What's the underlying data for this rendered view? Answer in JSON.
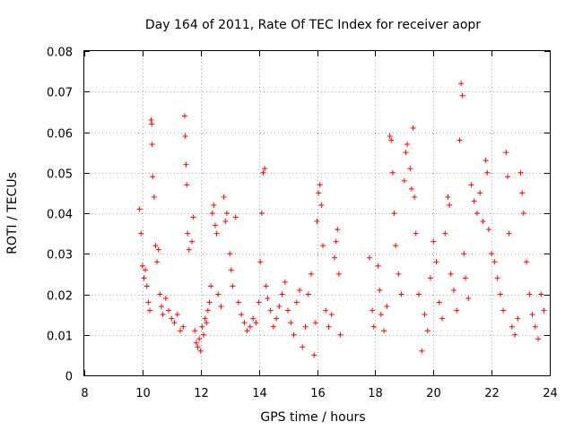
{
  "chart_data": {
    "type": "scatter",
    "title": "Day 164 of 2011, Rate Of TEC Index for receiver aopr",
    "xlabel": "GPS time / hours",
    "ylabel": "ROTI / TECUs",
    "xlim": [
      8,
      24
    ],
    "ylim": [
      0,
      0.08
    ],
    "xticks": [
      8,
      10,
      12,
      14,
      16,
      18,
      20,
      22,
      24
    ],
    "xtick_labels": [
      "8",
      "10",
      "12",
      "14",
      "16",
      "18",
      "20",
      "22",
      "24"
    ],
    "yticks": [
      0,
      0.01,
      0.02,
      0.03,
      0.04,
      0.05,
      0.06,
      0.07,
      0.08
    ],
    "ytick_labels": [
      "0",
      "0.01",
      "0.02",
      "0.03",
      "0.04",
      "0.05",
      "0.06",
      "0.07",
      "0.08"
    ],
    "grid": true,
    "marker": "+",
    "color": "#ff0000",
    "series": [
      {
        "name": "ROTI",
        "points": [
          [
            9.9,
            0.041
          ],
          [
            9.95,
            0.035
          ],
          [
            10.0,
            0.027
          ],
          [
            10.05,
            0.024
          ],
          [
            10.1,
            0.026
          ],
          [
            10.15,
            0.022
          ],
          [
            10.2,
            0.018
          ],
          [
            10.25,
            0.016
          ],
          [
            10.3,
            0.063
          ],
          [
            10.32,
            0.062
          ],
          [
            10.33,
            0.057
          ],
          [
            10.35,
            0.049
          ],
          [
            10.4,
            0.044
          ],
          [
            10.45,
            0.032
          ],
          [
            10.5,
            0.028
          ],
          [
            10.55,
            0.031
          ],
          [
            10.6,
            0.02
          ],
          [
            10.65,
            0.017
          ],
          [
            10.7,
            0.015
          ],
          [
            10.8,
            0.019
          ],
          [
            10.9,
            0.016
          ],
          [
            11.0,
            0.014
          ],
          [
            11.1,
            0.013
          ],
          [
            11.2,
            0.015
          ],
          [
            11.3,
            0.011
          ],
          [
            11.4,
            0.012
          ],
          [
            11.45,
            0.064
          ],
          [
            11.47,
            0.059
          ],
          [
            11.5,
            0.052
          ],
          [
            11.52,
            0.047
          ],
          [
            11.55,
            0.035
          ],
          [
            11.6,
            0.031
          ],
          [
            11.7,
            0.033
          ],
          [
            11.75,
            0.039
          ],
          [
            11.8,
            0.011
          ],
          [
            11.85,
            0.008
          ],
          [
            11.9,
            0.007
          ],
          [
            11.95,
            0.009
          ],
          [
            12.0,
            0.006
          ],
          [
            12.05,
            0.012
          ],
          [
            12.1,
            0.01
          ],
          [
            12.15,
            0.014
          ],
          [
            12.2,
            0.013
          ],
          [
            12.25,
            0.016
          ],
          [
            12.3,
            0.018
          ],
          [
            12.35,
            0.022
          ],
          [
            12.4,
            0.04
          ],
          [
            12.45,
            0.042
          ],
          [
            12.5,
            0.037
          ],
          [
            12.55,
            0.035
          ],
          [
            12.6,
            0.02
          ],
          [
            12.7,
            0.017
          ],
          [
            12.8,
            0.044
          ],
          [
            12.85,
            0.038
          ],
          [
            12.9,
            0.04
          ],
          [
            13.0,
            0.03
          ],
          [
            13.05,
            0.026
          ],
          [
            13.1,
            0.022
          ],
          [
            13.2,
            0.039
          ],
          [
            13.3,
            0.018
          ],
          [
            13.4,
            0.015
          ],
          [
            13.5,
            0.013
          ],
          [
            13.6,
            0.011
          ],
          [
            13.7,
            0.012
          ],
          [
            13.8,
            0.014
          ],
          [
            13.9,
            0.013
          ],
          [
            14.0,
            0.018
          ],
          [
            14.05,
            0.028
          ],
          [
            14.1,
            0.04
          ],
          [
            14.15,
            0.05
          ],
          [
            14.2,
            0.051
          ],
          [
            14.25,
            0.022
          ],
          [
            14.3,
            0.019
          ],
          [
            14.4,
            0.016
          ],
          [
            14.5,
            0.012
          ],
          [
            14.6,
            0.014
          ],
          [
            14.7,
            0.017
          ],
          [
            14.8,
            0.02
          ],
          [
            14.9,
            0.023
          ],
          [
            15.0,
            0.016
          ],
          [
            15.1,
            0.013
          ],
          [
            15.2,
            0.01
          ],
          [
            15.3,
            0.018
          ],
          [
            15.4,
            0.021
          ],
          [
            15.5,
            0.007
          ],
          [
            15.6,
            0.012
          ],
          [
            15.7,
            0.02
          ],
          [
            15.8,
            0.025
          ],
          [
            15.9,
            0.005
          ],
          [
            15.95,
            0.013
          ],
          [
            16.0,
            0.038
          ],
          [
            16.05,
            0.045
          ],
          [
            16.1,
            0.047
          ],
          [
            16.15,
            0.042
          ],
          [
            16.2,
            0.032
          ],
          [
            16.3,
            0.016
          ],
          [
            16.4,
            0.012
          ],
          [
            16.5,
            0.015
          ],
          [
            16.6,
            0.029
          ],
          [
            16.65,
            0.033
          ],
          [
            16.7,
            0.036
          ],
          [
            16.75,
            0.025
          ],
          [
            16.8,
            0.01
          ],
          [
            17.8,
            0.029
          ],
          [
            17.9,
            0.016
          ],
          [
            17.95,
            0.012
          ],
          [
            18.1,
            0.027
          ],
          [
            18.15,
            0.021
          ],
          [
            18.2,
            0.015
          ],
          [
            18.3,
            0.011
          ],
          [
            18.4,
            0.017
          ],
          [
            18.5,
            0.059
          ],
          [
            18.55,
            0.058
          ],
          [
            18.6,
            0.05
          ],
          [
            18.65,
            0.04
          ],
          [
            18.7,
            0.032
          ],
          [
            18.8,
            0.025
          ],
          [
            18.9,
            0.02
          ],
          [
            19.0,
            0.048
          ],
          [
            19.05,
            0.055
          ],
          [
            19.1,
            0.057
          ],
          [
            19.2,
            0.051
          ],
          [
            19.25,
            0.046
          ],
          [
            19.3,
            0.061
          ],
          [
            19.35,
            0.044
          ],
          [
            19.4,
            0.035
          ],
          [
            19.5,
            0.02
          ],
          [
            19.6,
            0.006
          ],
          [
            19.7,
            0.015
          ],
          [
            19.8,
            0.011
          ],
          [
            19.9,
            0.024
          ],
          [
            20.0,
            0.033
          ],
          [
            20.1,
            0.028
          ],
          [
            20.2,
            0.018
          ],
          [
            20.3,
            0.014
          ],
          [
            20.4,
            0.035
          ],
          [
            20.5,
            0.044
          ],
          [
            20.55,
            0.042
          ],
          [
            20.6,
            0.025
          ],
          [
            20.7,
            0.021
          ],
          [
            20.8,
            0.016
          ],
          [
            20.9,
            0.058
          ],
          [
            20.95,
            0.072
          ],
          [
            21.0,
            0.069
          ],
          [
            21.05,
            0.03
          ],
          [
            21.1,
            0.024
          ],
          [
            21.2,
            0.019
          ],
          [
            21.3,
            0.047
          ],
          [
            21.4,
            0.043
          ],
          [
            21.5,
            0.04
          ],
          [
            21.6,
            0.045
          ],
          [
            21.7,
            0.038
          ],
          [
            21.8,
            0.053
          ],
          [
            21.85,
            0.05
          ],
          [
            21.9,
            0.036
          ],
          [
            22.0,
            0.03
          ],
          [
            22.1,
            0.028
          ],
          [
            22.2,
            0.024
          ],
          [
            22.3,
            0.02
          ],
          [
            22.4,
            0.016
          ],
          [
            22.5,
            0.055
          ],
          [
            22.55,
            0.049
          ],
          [
            22.6,
            0.035
          ],
          [
            22.7,
            0.012
          ],
          [
            22.8,
            0.01
          ],
          [
            22.9,
            0.014
          ],
          [
            23.0,
            0.05
          ],
          [
            23.05,
            0.045
          ],
          [
            23.1,
            0.04
          ],
          [
            23.2,
            0.028
          ],
          [
            23.3,
            0.02
          ],
          [
            23.4,
            0.015
          ],
          [
            23.5,
            0.012
          ],
          [
            23.6,
            0.009
          ],
          [
            23.7,
            0.02
          ],
          [
            23.8,
            0.016
          ]
        ]
      }
    ]
  }
}
